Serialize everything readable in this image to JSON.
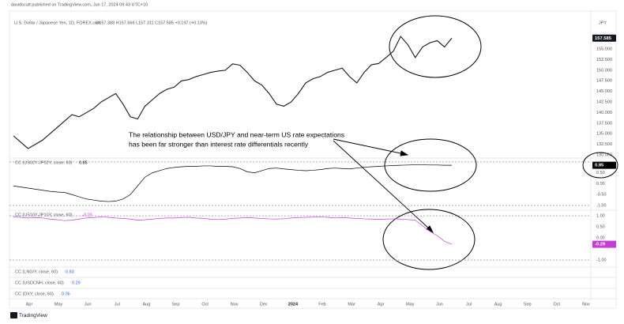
{
  "header": {
    "publisher": "davidscutt published on TradingView.com, Jun 17, 2024 09:43 UTC+10",
    "currency": "JPY"
  },
  "annotation": {
    "lines": [
      "The relationship between USD/JPY and near-term US rate expectations",
      "has been far stronger than interest rate differentials recently"
    ]
  },
  "indicators": [
    {
      "name": "CC (LNG/Y, close, 60)",
      "value": 0.83
    },
    {
      "name": "CC (USDCNH, close, 60)",
      "value": 0.29
    },
    {
      "name": "CC (DXY, close, 60)",
      "value": 0.06
    }
  ],
  "footer": {
    "brand": "TradingView"
  },
  "time_axis": {
    "categories": [
      "Apr",
      "May",
      "Jun",
      "Jul",
      "Aug",
      "Sep",
      "Oct",
      "Nov",
      "Dec",
      "2024",
      "Feb",
      "Mar",
      "Apr",
      "May",
      "Jun",
      "Jul",
      "Aug",
      "Sep",
      "Oct",
      "Nov"
    ]
  },
  "chart_data": [
    {
      "type": "line",
      "title": "U.S. Dollar / Japanese Yen, 1D, FOREX.com",
      "quote": "O157.388 H157.666 L157.311 C157.585 +0.197 (+0.13%)",
      "color": "#131722",
      "values": [
        134.5,
        133,
        131.5,
        132.5,
        133.5,
        135,
        136.5,
        138,
        139.5,
        139,
        140,
        141,
        142.5,
        143.5,
        144.5,
        142,
        139,
        138.5,
        141.5,
        143,
        144.5,
        145.5,
        146,
        147.5,
        147.8,
        148.5,
        149,
        149.5,
        149.8,
        150,
        151.5,
        151.2,
        149.5,
        147.5,
        146.5,
        144.5,
        142,
        141.5,
        142.5,
        144.5,
        147,
        148,
        148.5,
        149.5,
        150,
        150.5,
        148.5,
        147,
        149.5,
        151.3,
        151.6,
        153,
        154.5,
        158,
        156,
        153,
        155.5,
        156.5,
        157,
        155.5,
        157.585
      ],
      "ylim": [
        129.25,
        163.8
      ],
      "yticks": [
        {
          "value": 130,
          "label": "130.000"
        },
        {
          "value": 132.5,
          "label": "132.500"
        },
        {
          "value": 135,
          "label": "135.000"
        },
        {
          "value": 137.5,
          "label": "137.500"
        },
        {
          "value": 140,
          "label": "140.000"
        },
        {
          "value": 142.5,
          "label": "142.500"
        },
        {
          "value": 145,
          "label": "145.000"
        },
        {
          "value": 147.5,
          "label": "147.500"
        },
        {
          "value": 150,
          "label": "150.000"
        },
        {
          "value": 152.5,
          "label": "152.500"
        },
        {
          "value": 155,
          "label": "155.000"
        }
      ]
    },
    {
      "type": "line",
      "title": "CC (US02Y-JP02Y, close, 60)",
      "color": "#000000",
      "values": [
        -0.1,
        -0.15,
        -0.2,
        -0.25,
        -0.3,
        -0.35,
        -0.38,
        -0.4,
        -0.5,
        -0.6,
        -0.7,
        -0.75,
        -0.8,
        -0.82,
        -0.8,
        -0.7,
        -0.5,
        -0.1,
        0.3,
        0.5,
        0.6,
        0.7,
        0.75,
        0.78,
        0.8,
        0.8,
        0.82,
        0.82,
        0.8,
        0.8,
        0.78,
        0.7,
        0.55,
        0.5,
        0.6,
        0.7,
        0.72,
        0.68,
        0.65,
        0.62,
        0.6,
        0.62,
        0.65,
        0.7,
        0.72,
        0.7,
        0.68,
        0.72,
        0.76,
        0.78,
        0.8,
        0.82,
        0.84,
        0.85,
        0.86,
        0.87,
        0.87,
        0.86,
        0.86,
        0.85,
        0.85
      ],
      "ylim": [
        -1.18,
        1.18
      ],
      "yticks": [
        {
          "value": 0.5,
          "label": "0.50"
        },
        {
          "value": 0,
          "label": "0.00"
        },
        {
          "value": -0.5,
          "label": "-0.50"
        },
        {
          "value": -1,
          "label": "-1.00"
        }
      ],
      "hlines": [
        1,
        -1
      ]
    },
    {
      "type": "line",
      "title": "CC (US10Y-JP10Y, close, 60)",
      "color": "#c23fd6",
      "values": [
        0.95,
        0.93,
        0.9,
        0.92,
        0.9,
        0.85,
        0.82,
        0.78,
        0.8,
        0.85,
        0.9,
        0.92,
        0.95,
        0.93,
        0.9,
        0.88,
        0.85,
        0.8,
        0.82,
        0.85,
        0.88,
        0.9,
        0.9,
        0.92,
        0.93,
        0.9,
        0.88,
        0.85,
        0.83,
        0.85,
        0.88,
        0.9,
        0.92,
        0.9,
        0.88,
        0.86,
        0.85,
        0.87,
        0.9,
        0.92,
        0.93,
        0.94,
        0.95,
        0.93,
        0.9,
        0.92,
        0.9,
        0.88,
        0.86,
        0.85,
        0.84,
        0.85,
        0.86,
        0.85,
        0.83,
        0.8,
        0.55,
        0.3,
        0.1,
        -0.15,
        -0.29
      ],
      "ylim": [
        -1.39,
        1.18
      ],
      "yticks": [
        {
          "value": 1,
          "label": "1.00"
        },
        {
          "value": 0.5,
          "label": "0.50"
        },
        {
          "value": 0,
          "label": "0.00"
        },
        {
          "value": -1,
          "label": "-1.00"
        }
      ],
      "hlines": [
        1,
        -1
      ]
    }
  ]
}
